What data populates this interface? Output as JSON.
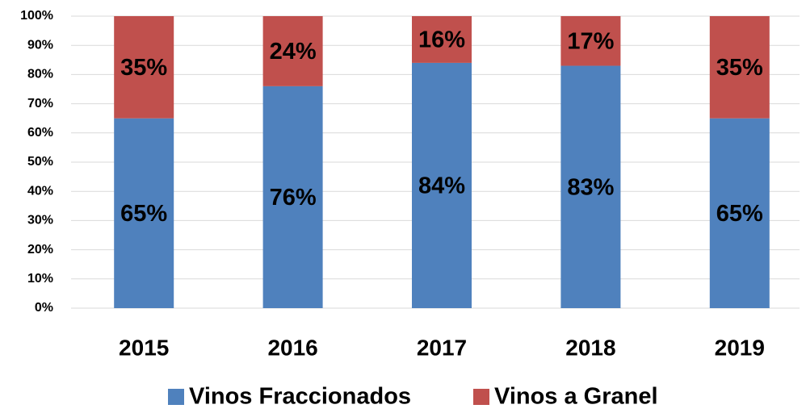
{
  "chart_data": {
    "type": "stacked_bar",
    "categories": [
      "2015",
      "2016",
      "2017",
      "2018",
      "2019"
    ],
    "series": [
      {
        "name": "Vinos Fraccionados",
        "color": "#4f81bd",
        "values": [
          65,
          76,
          84,
          83,
          65
        ],
        "value_labels": [
          "65%",
          "76%",
          "84%",
          "83%",
          "65%"
        ]
      },
      {
        "name": "Vinos a Granel",
        "color": "#c0504d",
        "values": [
          35,
          24,
          16,
          17,
          35
        ],
        "value_labels": [
          "35%",
          "24%",
          "16%",
          "17%",
          "35%"
        ]
      }
    ],
    "ylim": [
      0,
      100
    ],
    "yticks": [
      {
        "value": 0,
        "label": "0%"
      },
      {
        "value": 10,
        "label": "10%"
      },
      {
        "value": 20,
        "label": "20%"
      },
      {
        "value": 30,
        "label": "30%"
      },
      {
        "value": 40,
        "label": "40%"
      },
      {
        "value": 50,
        "label": "50%"
      },
      {
        "value": 60,
        "label": "60%"
      },
      {
        "value": 70,
        "label": "70%"
      },
      {
        "value": 80,
        "label": "80%"
      },
      {
        "value": 90,
        "label": "90%"
      },
      {
        "value": 100,
        "label": "100%"
      }
    ],
    "grid": true,
    "legend": "bottom"
  }
}
